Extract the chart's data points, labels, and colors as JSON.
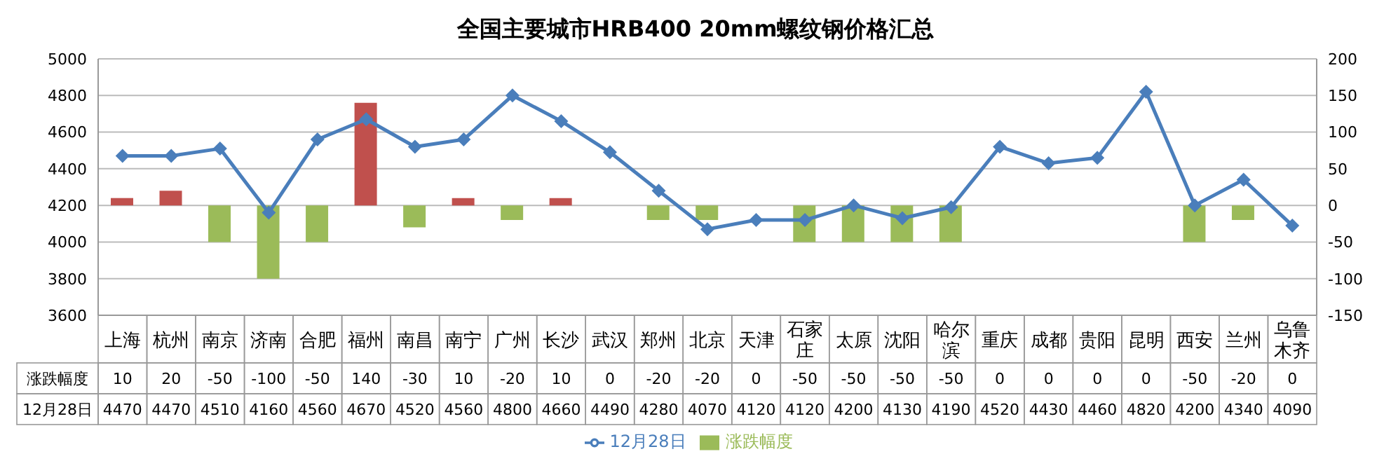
{
  "chart_data": {
    "type": "bar",
    "title": "全国主要城市HRB400 20mm螺纹钢价格汇总",
    "categories": [
      "上海",
      "杭州",
      "南京",
      "济南",
      "合肥",
      "福州",
      "南昌",
      "南宁",
      "广州",
      "长沙",
      "武汉",
      "郑州",
      "北京",
      "天津",
      "石家庄",
      "太原",
      "沈阳",
      "哈尔滨",
      "重庆",
      "成都",
      "贵阳",
      "昆明",
      "西安",
      "兰州",
      "乌鲁木齐"
    ],
    "series": [
      {
        "name": "涨跌幅度",
        "axis": "y2",
        "color": "#9bbb59",
        "colors": [
          "#c0504d",
          "#c0504d",
          "#9bbb59",
          "#9bbb59",
          "#9bbb59",
          "#c0504d",
          "#9bbb59",
          "#c0504d",
          "#9bbb59",
          "#c0504d",
          "#9bbb59",
          "#9bbb59",
          "#9bbb59",
          "#9bbb59",
          "#9bbb59",
          "#9bbb59",
          "#9bbb59",
          "#9bbb59",
          "#9bbb59",
          "#9bbb59",
          "#9bbb59",
          "#9bbb59",
          "#9bbb59",
          "#9bbb59",
          "#9bbb59"
        ],
        "values": [
          10,
          20,
          -50,
          -100,
          -50,
          140,
          -30,
          10,
          -20,
          10,
          0,
          -20,
          -20,
          0,
          -50,
          -50,
          -50,
          -50,
          0,
          0,
          0,
          0,
          -50,
          -20,
          0
        ]
      },
      {
        "name": "12月28日",
        "type": "line",
        "color": "#4a7ebb",
        "marker": "diamond",
        "values": [
          4470,
          4470,
          4510,
          4160,
          4560,
          4670,
          4520,
          4560,
          4800,
          4660,
          4490,
          4280,
          4070,
          4120,
          4120,
          4200,
          4130,
          4190,
          4520,
          4430,
          4460,
          4820,
          4200,
          4340,
          4090
        ]
      }
    ],
    "ylim": [
      3600,
      5000
    ],
    "yticks": [
      3600,
      3800,
      4000,
      4200,
      4400,
      4600,
      4800,
      5000
    ],
    "y2lim": [
      -150,
      200
    ],
    "y2ticks": [
      -150,
      -100,
      -50,
      0,
      50,
      100,
      150,
      200
    ],
    "grid": "y",
    "legend": "bottom",
    "data_labels": true
  }
}
